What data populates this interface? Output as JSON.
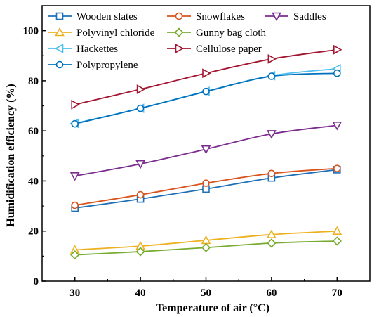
{
  "chart_data": {
    "type": "line",
    "xlabel": "Temperature of air (°C)",
    "ylabel": "Humidification efficiency (%)",
    "x": [
      30,
      40,
      50,
      60,
      70
    ],
    "xlim": [
      25,
      75
    ],
    "ylim": [
      0,
      110
    ],
    "xticks": [
      30,
      40,
      50,
      60,
      70
    ],
    "yticks": [
      0,
      20,
      40,
      60,
      80,
      100
    ],
    "grid": false,
    "legend_position": "top-left",
    "series": [
      {
        "name": "Wooden slates",
        "color": "#1f6fb5",
        "marker": "square",
        "values": [
          29.2,
          32.8,
          36.8,
          41.2,
          44.5
        ]
      },
      {
        "name": "Snowflakes",
        "color": "#d9531e",
        "marker": "circle",
        "values": [
          30.3,
          34.5,
          39.1,
          43.0,
          45.0
        ]
      },
      {
        "name": "Saddles",
        "color": "#7b2d8e",
        "marker": "triangle-down",
        "values": [
          42.0,
          46.8,
          52.7,
          58.8,
          62.2
        ]
      },
      {
        "name": "Polyvinyl chloride",
        "color": "#edb120",
        "marker": "triangle-up",
        "values": [
          12.5,
          14.0,
          16.3,
          18.6,
          20.0
        ]
      },
      {
        "name": "Gunny bag cloth",
        "color": "#77ac30",
        "marker": "diamond",
        "values": [
          10.5,
          11.8,
          13.4,
          15.2,
          16.0
        ]
      },
      {
        "name": "Hackettes",
        "color": "#4dbeee",
        "marker": "triangle-left",
        "values": [
          63.0,
          69.0,
          75.8,
          82.0,
          84.8
        ]
      },
      {
        "name": "Cellulose paper",
        "color": "#a2142f",
        "marker": "triangle-right",
        "values": [
          70.5,
          76.6,
          83.0,
          88.7,
          92.4
        ]
      },
      {
        "name": "Polypropylene",
        "color": "#0072bd",
        "marker": "circle",
        "values": [
          62.8,
          69.0,
          75.7,
          81.8,
          83.0
        ]
      }
    ]
  }
}
